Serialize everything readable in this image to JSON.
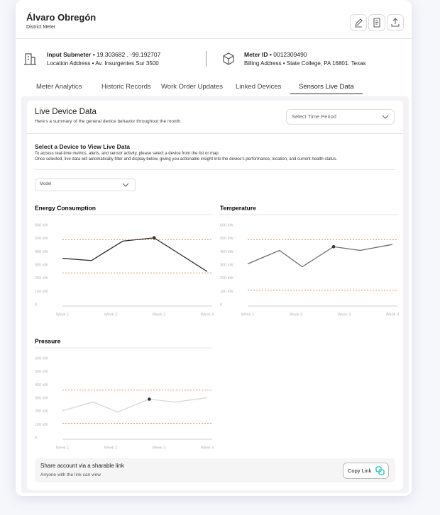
{
  "header": {
    "title": "Álvaro Obregón",
    "subtitle": "District Meter"
  },
  "info": [
    {
      "label": "Input Submeter •",
      "value": "19.303682 , -99.192707",
      "sub_label": "Location Address •",
      "sub_value": "Av. Insurgentes Sur 3500"
    },
    {
      "label": "Meter ID •",
      "value": "0012309490",
      "sub_label": "Billing Address •",
      "sub_value": "State College, PA 16801. Texas"
    }
  ],
  "tabs": [
    "Meter Analytics",
    "Historic Records",
    "Work Order Updates",
    "Linked Devices",
    "Sensors Live Data"
  ],
  "active_tab": 4,
  "panel": {
    "title": "Live Device Data",
    "subtitle": "Here's a summary of the general device behavior throughout the month.",
    "select_placeholder": "Select Time Period"
  },
  "device": {
    "title": "Select a Device to View Live Data",
    "text": [
      "To access real-time metrics, alerts, and sensor activity, please select a device from the list or map.",
      "Once selected, live data will automatically filter and display below, giving you actionable insight into the device's performance, location, and current health status."
    ],
    "dropdown": "Model"
  },
  "charts": [
    {
      "type": "line",
      "title": "Energy Consumption",
      "color": "#2b2b2b",
      "threshold_color": "#f08a5d",
      "x": [
        1,
        1.6,
        2.25,
        2.9,
        4
      ],
      "values": [
        350,
        333,
        480,
        505,
        250
      ],
      "highlight": 3,
      "thresholds": [
        490,
        240
      ],
      "xlim": [
        1,
        4
      ],
      "xticks": [
        {
          "value": 1,
          "label": "Week 1"
        },
        {
          "value": 2,
          "label": "Week 2"
        },
        {
          "value": 3,
          "label": "Week 3"
        },
        {
          "value": 4,
          "label": "Week 4"
        }
      ],
      "ylim": [
        0,
        600
      ],
      "yticks": [
        0,
        {
          "value": 100,
          "label": "100 kW"
        },
        {
          "value": 200,
          "label": "200 kW"
        },
        {
          "value": 300,
          "label": "300 kW"
        },
        {
          "value": 400,
          "label": "400 kW"
        },
        {
          "value": 500,
          "label": "500 kW"
        },
        {
          "value": 600,
          "label": "600 kW"
        }
      ]
    },
    {
      "type": "line",
      "title": "Temperature",
      "color": "#6b6b6b",
      "threshold_color": "#f08a5d",
      "x": [
        1,
        1.66,
        2.13,
        2.78,
        3.33,
        4
      ],
      "values": [
        308,
        410,
        286,
        438,
        410,
        455
      ],
      "highlight": 3,
      "thresholds": [
        490,
        110
      ],
      "xlim": [
        1,
        4
      ],
      "xticks": [
        {
          "value": 1,
          "label": "Week 1"
        },
        {
          "value": 2,
          "label": "Week 2"
        },
        {
          "value": 3,
          "label": "Week 3"
        },
        {
          "value": 4,
          "label": "Week 4"
        }
      ],
      "ylim": [
        0,
        600
      ],
      "yticks": [
        0,
        {
          "value": 100,
          "label": "100 kW"
        },
        {
          "value": 200,
          "label": "200 kW"
        },
        {
          "value": 300,
          "label": "300 kW"
        },
        {
          "value": 400,
          "label": "400 kW"
        },
        {
          "value": 500,
          "label": "500 kW"
        },
        {
          "value": 600,
          "label": "600 kW"
        }
      ]
    },
    {
      "type": "line",
      "title": "Pressure",
      "color": "#d6d6d6",
      "threshold_color": "#f08a5d",
      "x": [
        1,
        1.64,
        2.14,
        2.8,
        3.33,
        4
      ],
      "values": [
        205,
        270,
        195,
        292,
        270,
        303
      ],
      "highlight": 3,
      "thresholds": [
        360,
        110
      ],
      "xlim": [
        1,
        4
      ],
      "xticks": [
        {
          "value": 1,
          "label": "Week 1"
        },
        {
          "value": 2,
          "label": "Week 2"
        },
        {
          "value": 3,
          "label": "Week 3"
        },
        {
          "value": 4,
          "label": "Week 4"
        }
      ],
      "ylim": [
        0,
        600
      ],
      "yticks": [
        0,
        {
          "value": 100,
          "label": "100 kW"
        },
        {
          "value": 200,
          "label": "200 kW"
        },
        {
          "value": 300,
          "label": "300 kW"
        },
        {
          "value": 400,
          "label": "400 kW"
        },
        {
          "value": 500,
          "label": "500 kW"
        },
        {
          "value": 600,
          "label": "600 kW"
        }
      ]
    }
  ],
  "share": {
    "title": "Share account via a sharable link",
    "subtitle": "Anyone with the link can view",
    "button": "Copy Link"
  }
}
